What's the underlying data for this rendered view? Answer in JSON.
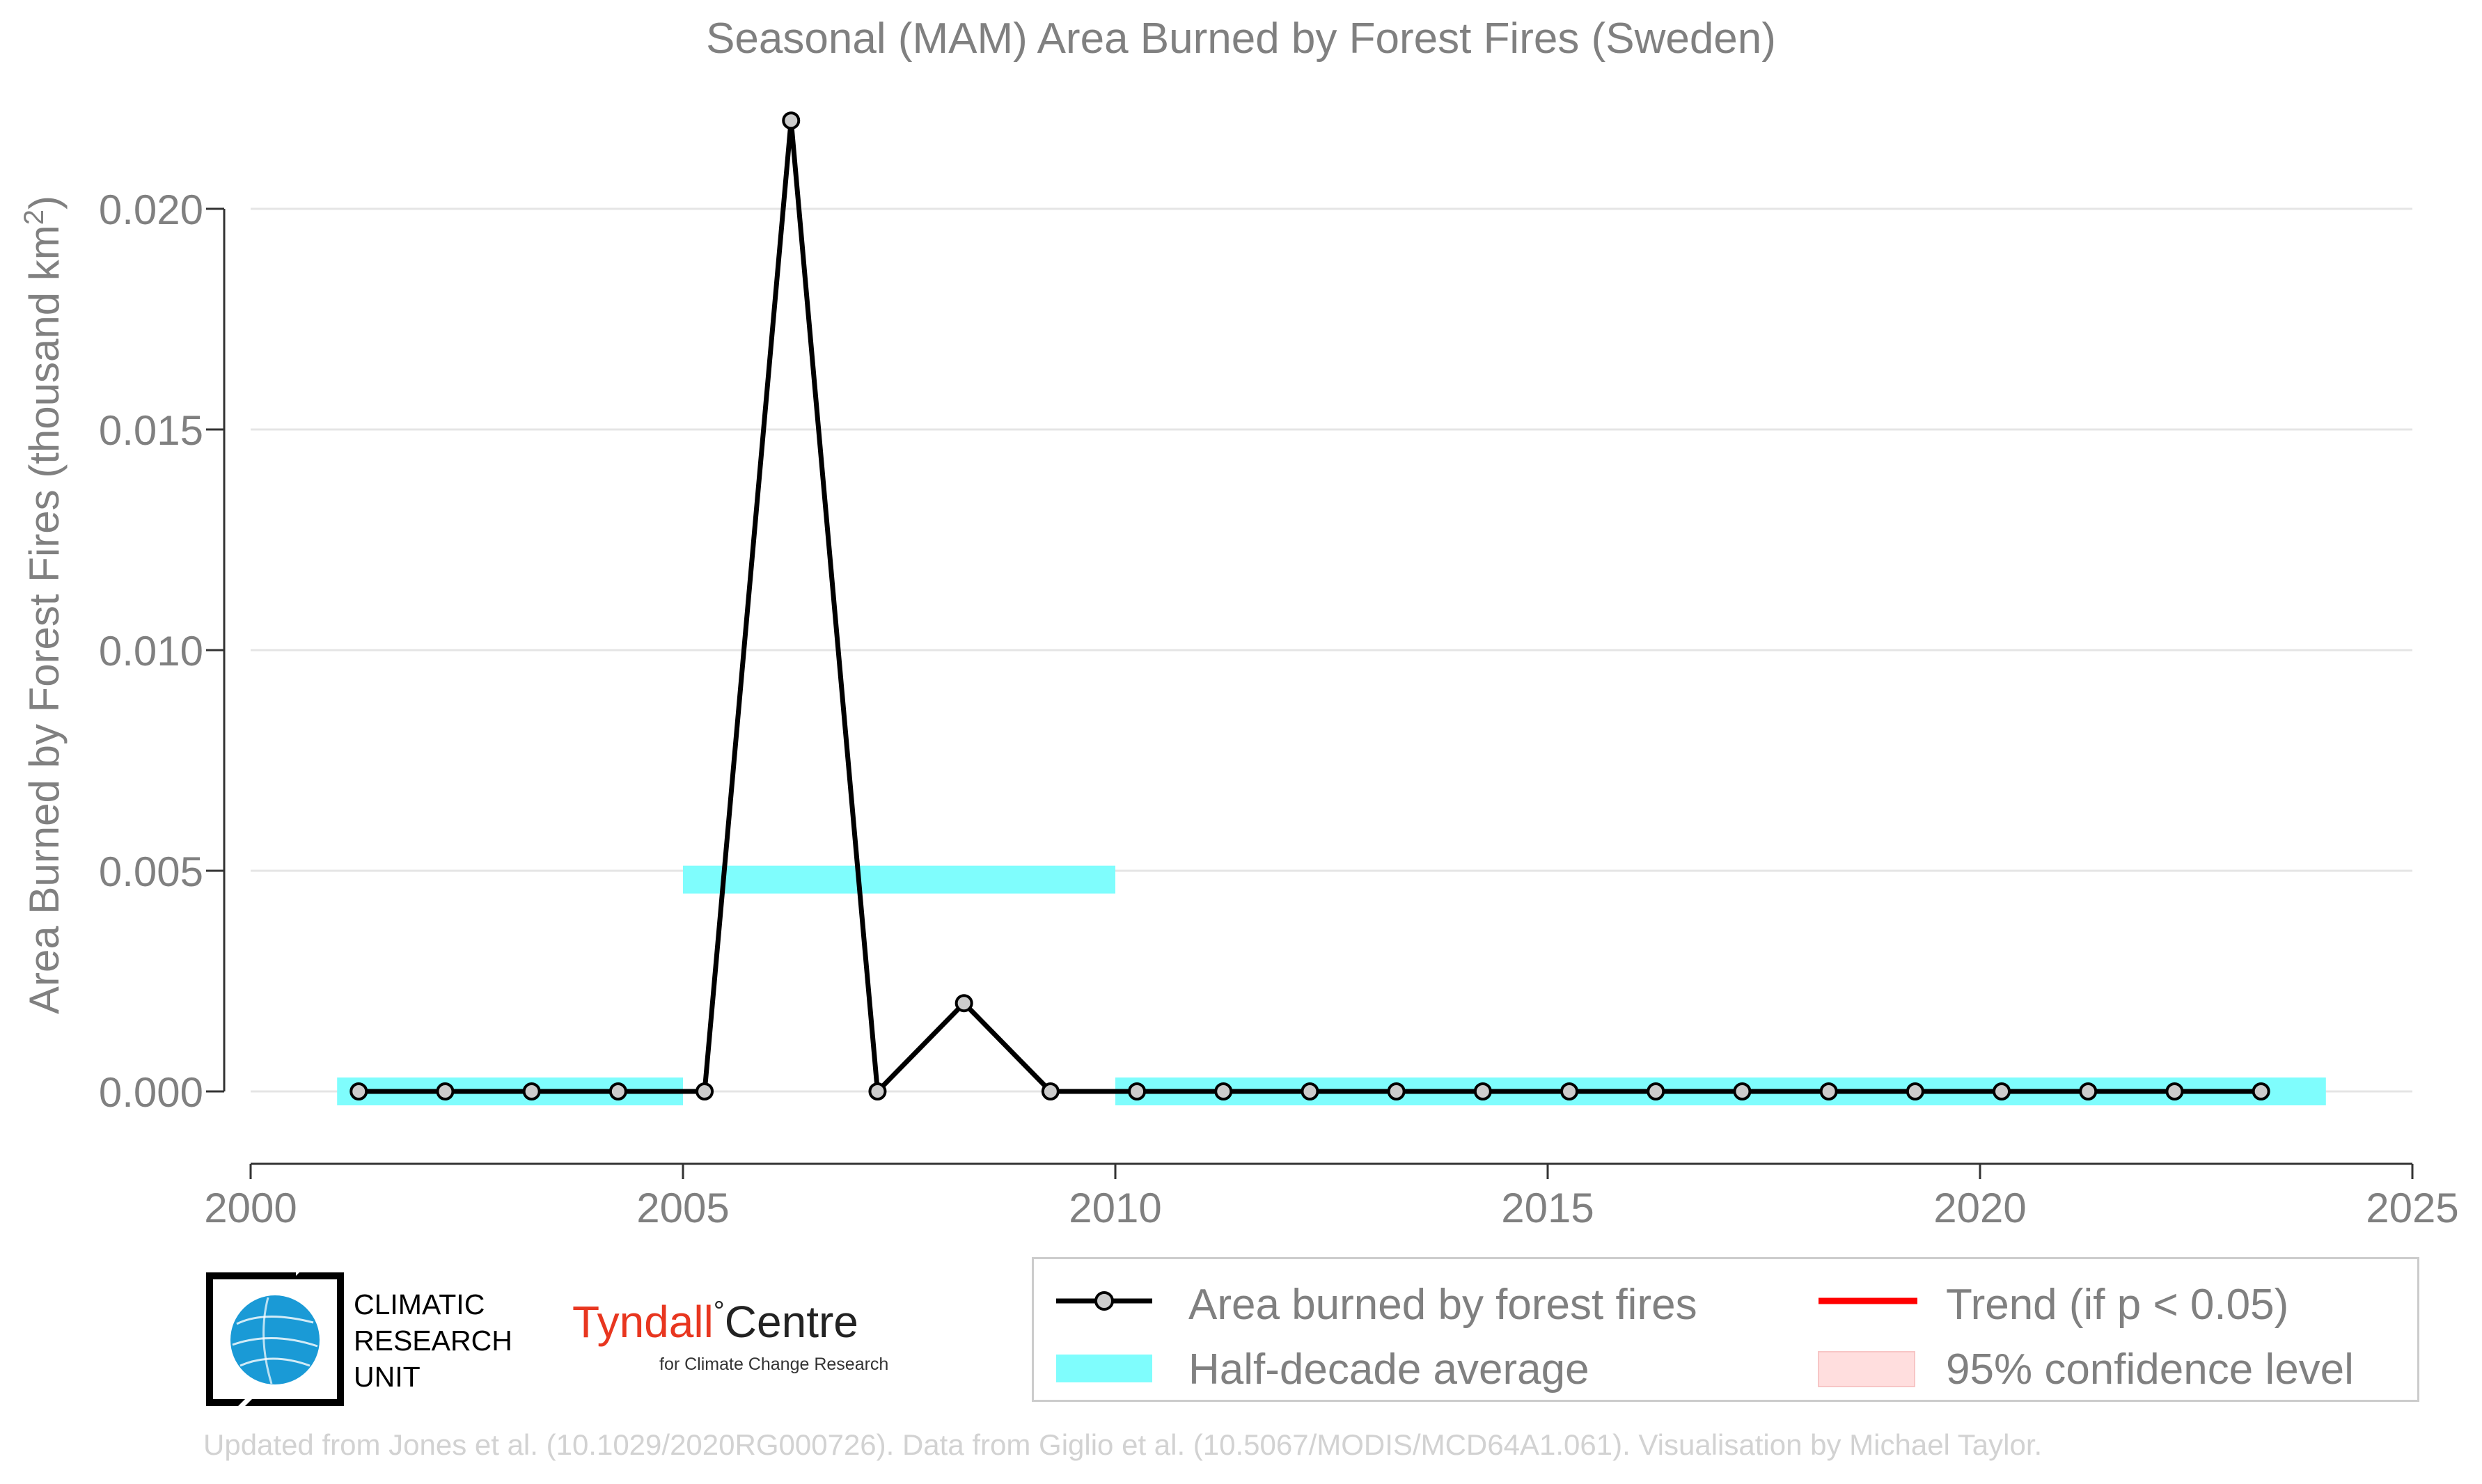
{
  "title": "Seasonal (MAM) Area Burned by Forest Fires (Sweden)",
  "footer": "Updated from Jones et al. (10.1029/2020RG000726). Data from Giglio et al. (10.5067/MODIS/MCD64A1.061). Visualisation by Michael Taylor.",
  "logos": {
    "cru_lines": [
      "CLIMATIC",
      "RESEARCH",
      "UNIT"
    ],
    "tyndall_part1": "Tyndall",
    "tyndall_degree": "°",
    "tyndall_part2": "Centre",
    "tyndall_sub": "for Climate Change Research"
  },
  "legend": {
    "line": "Area burned by forest fires",
    "band": "Half-decade average",
    "trend": "Trend (if p < 0.05)",
    "ci": "95% confidence level"
  },
  "colors": {
    "line": "#000000",
    "marker_fill": "#cccccc",
    "half_decade": "#7ffdfd",
    "trend": "#ff0000",
    "ci": "#ffdede",
    "grid": "#e5e5e5",
    "text": "#808080",
    "cru_blue": "#1a9ad6"
  },
  "chart_data": {
    "type": "line",
    "title": "Seasonal (MAM) Area Burned by Forest Fires (Sweden)",
    "xlabel": "",
    "ylabel": "Area Burned by Forest Fires (thousand km²)",
    "xlim": [
      2000,
      2025
    ],
    "ylim": [
      -0.0017,
      0.0225
    ],
    "x_ticks": [
      2000,
      2005,
      2010,
      2015,
      2020,
      2025
    ],
    "y_ticks": [
      0.0,
      0.005,
      0.01,
      0.015,
      0.02
    ],
    "y_tick_labels": [
      "0.000",
      "0.005",
      "0.010",
      "0.015",
      "0.020"
    ],
    "grid": "horizontal",
    "legend_position": "bottom-right",
    "series": [
      {
        "name": "Area burned by forest fires",
        "x": [
          2001.25,
          2002.25,
          2003.25,
          2004.25,
          2005.25,
          2006.25,
          2007.25,
          2008.25,
          2009.25,
          2010.25,
          2011.25,
          2012.25,
          2013.25,
          2014.25,
          2015.25,
          2016.25,
          2017.25,
          2018.25,
          2019.25,
          2020.25,
          2021.25,
          2022.25,
          2023.25
        ],
        "values": [
          0,
          0,
          0,
          0,
          0,
          0.022,
          0,
          0.002,
          0,
          0,
          0,
          0,
          0,
          0,
          0,
          0,
          0,
          0,
          0,
          0,
          0,
          0,
          0
        ]
      }
    ],
    "half_decade_averages": [
      {
        "start": 2001,
        "end": 2005,
        "value": 0.0
      },
      {
        "start": 2005,
        "end": 2010,
        "value": 0.0048
      },
      {
        "start": 2010,
        "end": 2024,
        "value": 0.0
      }
    ]
  }
}
